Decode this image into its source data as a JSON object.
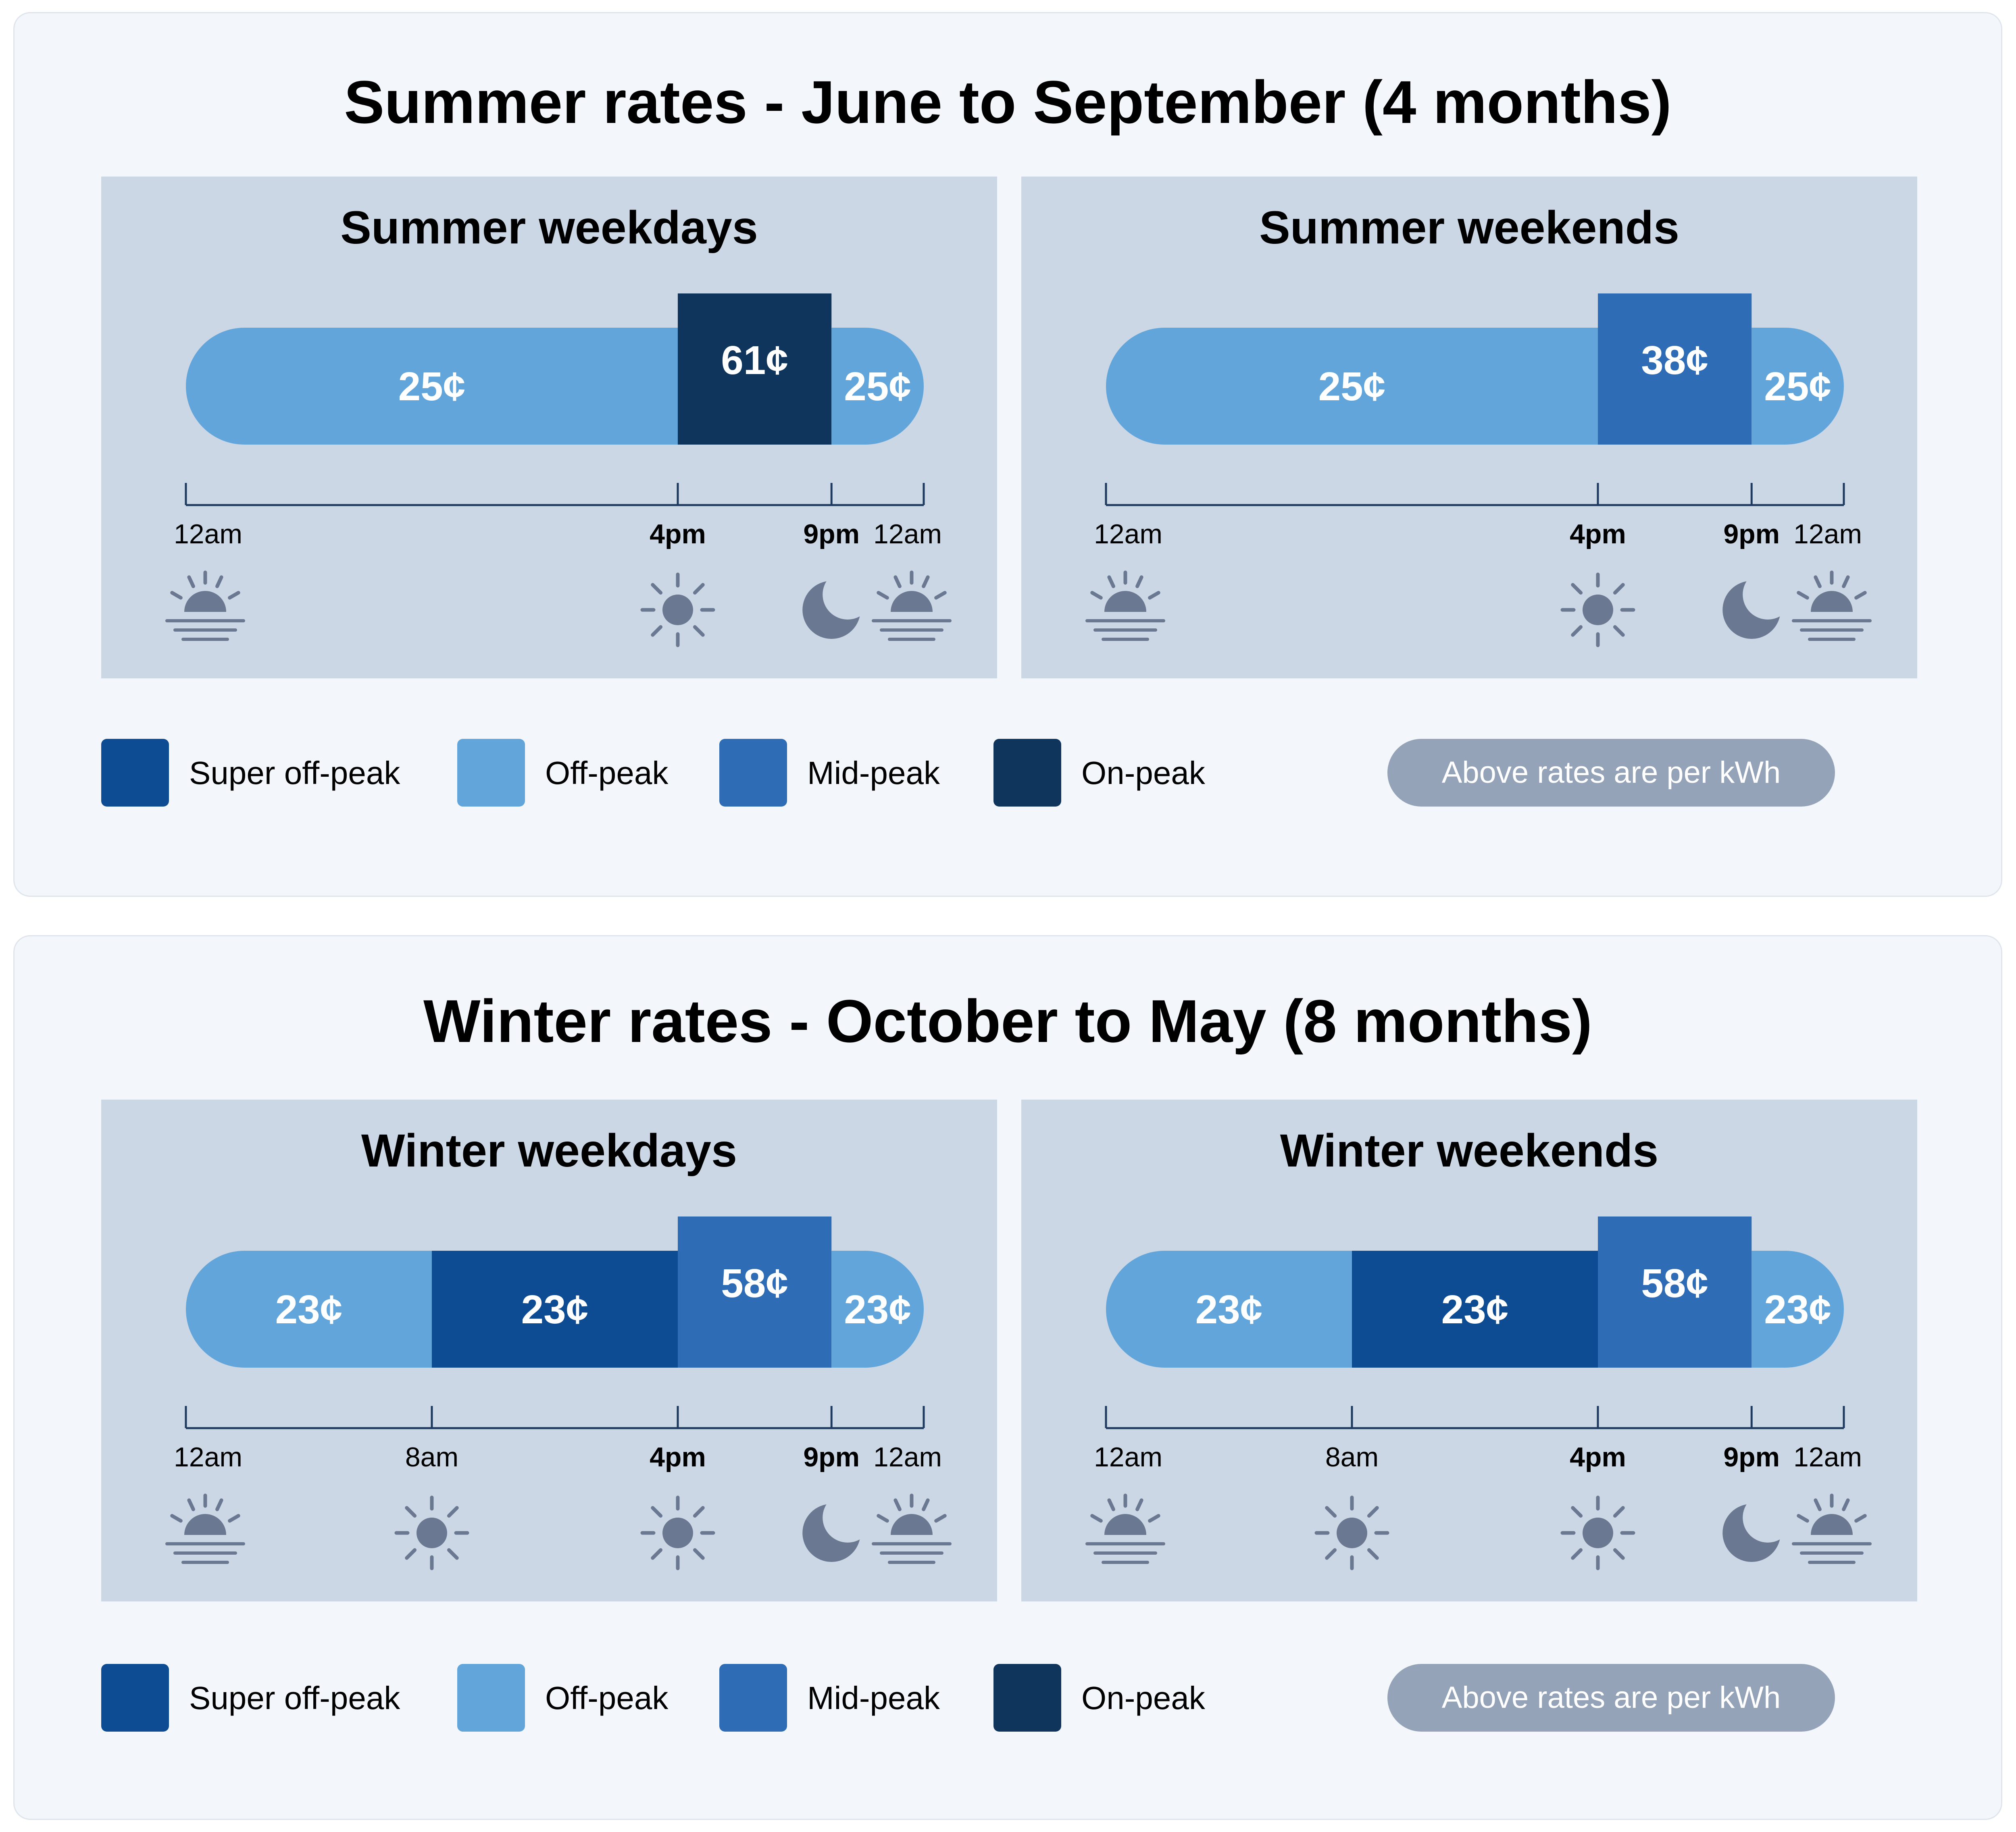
{
  "colors": {
    "super_off_peak": "#0d4c92",
    "off_peak": "#62a5da",
    "mid_peak": "#2e6cb5",
    "on_peak": "#0f355c",
    "panel_bg": "#cbd7e4",
    "icon": "#6b7891",
    "axis": "#1f3a5f"
  },
  "legend": [
    {
      "key": "super_off_peak",
      "label": "Super off-peak"
    },
    {
      "key": "off_peak",
      "label": "Off-peak"
    },
    {
      "key": "mid_peak",
      "label": "Mid-peak"
    },
    {
      "key": "on_peak",
      "label": "On-peak"
    }
  ],
  "rate_note": "Above rates are per kWh",
  "seasons": [
    {
      "title": "Summer rates - June to September (4 months)",
      "panels": [
        {
          "title": "Summer weekdays",
          "segments": [
            {
              "start": 0,
              "end": 16,
              "tier": "off_peak",
              "label": "25¢"
            },
            {
              "start": 16,
              "end": 21,
              "tier": "on_peak",
              "label": "61¢"
            },
            {
              "start": 21,
              "end": 24,
              "tier": "off_peak",
              "label": "25¢"
            }
          ],
          "ticks": [
            {
              "hour": 0,
              "label": "12am",
              "bold": false,
              "icon": "sunrise-icon"
            },
            {
              "hour": 16,
              "label": "4pm",
              "bold": true,
              "icon": "sun-icon"
            },
            {
              "hour": 21,
              "label": "9pm",
              "bold": true,
              "icon": "moon-icon"
            },
            {
              "hour": 24,
              "label": "12am",
              "bold": false,
              "icon": "sunrise-icon"
            }
          ]
        },
        {
          "title": "Summer weekends",
          "segments": [
            {
              "start": 0,
              "end": 16,
              "tier": "off_peak",
              "label": "25¢"
            },
            {
              "start": 16,
              "end": 21,
              "tier": "mid_peak",
              "label": "38¢"
            },
            {
              "start": 21,
              "end": 24,
              "tier": "off_peak",
              "label": "25¢"
            }
          ],
          "ticks": [
            {
              "hour": 0,
              "label": "12am",
              "bold": false,
              "icon": "sunrise-icon"
            },
            {
              "hour": 16,
              "label": "4pm",
              "bold": true,
              "icon": "sun-icon"
            },
            {
              "hour": 21,
              "label": "9pm",
              "bold": true,
              "icon": "moon-icon"
            },
            {
              "hour": 24,
              "label": "12am",
              "bold": false,
              "icon": "sunrise-icon"
            }
          ]
        }
      ]
    },
    {
      "title": "Winter rates - October to May (8 months)",
      "panels": [
        {
          "title": "Winter weekdays",
          "segments": [
            {
              "start": 0,
              "end": 8,
              "tier": "off_peak",
              "label": "23¢"
            },
            {
              "start": 8,
              "end": 16,
              "tier": "super_off_peak",
              "label": "23¢"
            },
            {
              "start": 16,
              "end": 21,
              "tier": "mid_peak",
              "label": "58¢"
            },
            {
              "start": 21,
              "end": 24,
              "tier": "off_peak",
              "label": "23¢"
            }
          ],
          "ticks": [
            {
              "hour": 0,
              "label": "12am",
              "bold": false,
              "icon": "sunrise-icon"
            },
            {
              "hour": 8,
              "label": "8am",
              "bold": false,
              "icon": "sun-icon"
            },
            {
              "hour": 16,
              "label": "4pm",
              "bold": true,
              "icon": "sun-icon"
            },
            {
              "hour": 21,
              "label": "9pm",
              "bold": true,
              "icon": "moon-icon"
            },
            {
              "hour": 24,
              "label": "12am",
              "bold": false,
              "icon": "sunrise-icon"
            }
          ]
        },
        {
          "title": "Winter weekends",
          "segments": [
            {
              "start": 0,
              "end": 8,
              "tier": "off_peak",
              "label": "23¢"
            },
            {
              "start": 8,
              "end": 16,
              "tier": "super_off_peak",
              "label": "23¢"
            },
            {
              "start": 16,
              "end": 21,
              "tier": "mid_peak",
              "label": "58¢"
            },
            {
              "start": 21,
              "end": 24,
              "tier": "off_peak",
              "label": "23¢"
            }
          ],
          "ticks": [
            {
              "hour": 0,
              "label": "12am",
              "bold": false,
              "icon": "sunrise-icon"
            },
            {
              "hour": 8,
              "label": "8am",
              "bold": false,
              "icon": "sun-icon"
            },
            {
              "hour": 16,
              "label": "4pm",
              "bold": true,
              "icon": "sun-icon"
            },
            {
              "hour": 21,
              "label": "9pm",
              "bold": true,
              "icon": "moon-icon"
            },
            {
              "hour": 24,
              "label": "12am",
              "bold": false,
              "icon": "sunrise-icon"
            }
          ]
        }
      ]
    }
  ]
}
